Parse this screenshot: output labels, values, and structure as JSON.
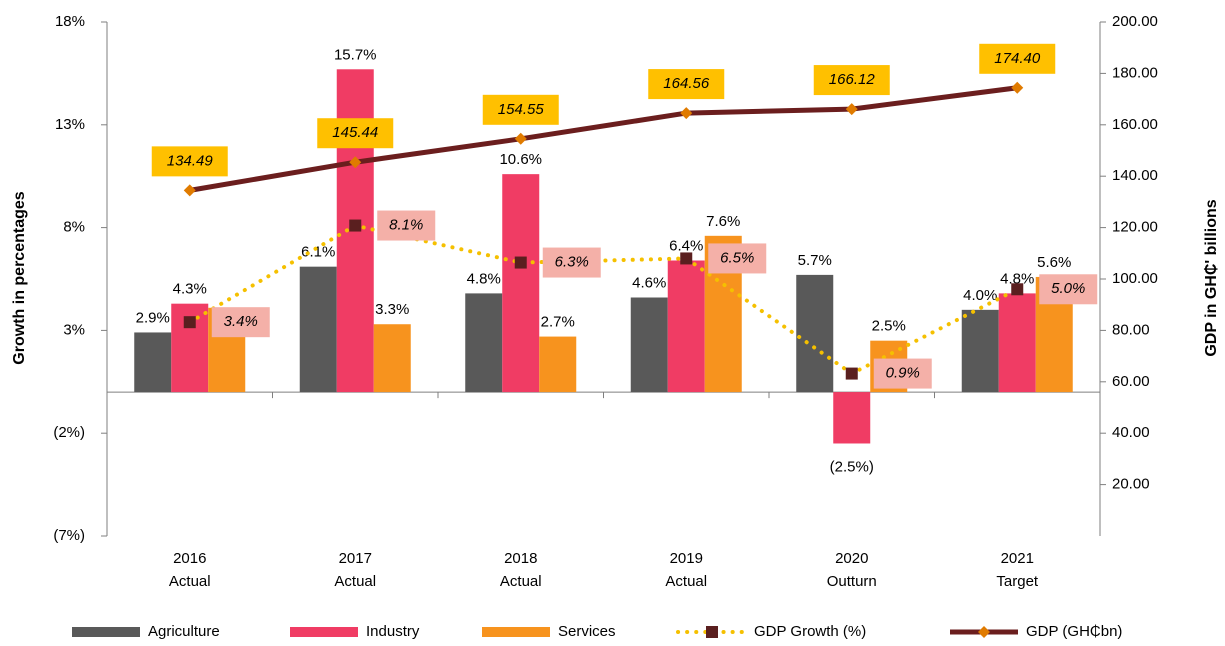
{
  "chart_data": {
    "type": "bar",
    "y_label": "Growth in percentages",
    "y2_label": "GDP in GH₵' billions",
    "categories": [
      [
        "2016",
        "Actual"
      ],
      [
        "2017",
        "Actual"
      ],
      [
        "2018",
        "Actual"
      ],
      [
        "2019",
        "Actual"
      ],
      [
        "2020",
        "Outturn"
      ],
      [
        "2021",
        "Target"
      ]
    ],
    "ylim": [
      -7,
      18
    ],
    "yticks": [
      {
        "value": -7,
        "label": "(7%)"
      },
      {
        "value": -2,
        "label": "(2%)"
      },
      {
        "value": 3,
        "label": "3%"
      },
      {
        "value": 8,
        "label": "8%"
      },
      {
        "value": 13,
        "label": "13%"
      },
      {
        "value": 18,
        "label": "18%"
      }
    ],
    "y2lim": [
      0,
      200
    ],
    "y2ticks": [
      {
        "value": 20,
        "label": "20.00"
      },
      {
        "value": 40,
        "label": "40.00"
      },
      {
        "value": 60,
        "label": "60.00"
      },
      {
        "value": 80,
        "label": "80.00"
      },
      {
        "value": 100,
        "label": "100.00"
      },
      {
        "value": 120,
        "label": "120.00"
      },
      {
        "value": 140,
        "label": "140.00"
      },
      {
        "value": 160,
        "label": "160.00"
      },
      {
        "value": 180,
        "label": "180.00"
      },
      {
        "value": 200,
        "label": "200.00"
      }
    ],
    "legend": "bottom",
    "series": [
      {
        "name": "Agriculture",
        "type": "bar",
        "color": "#595959",
        "values": [
          2.9,
          6.1,
          4.8,
          4.6,
          5.7,
          4.0
        ],
        "value_labels": [
          "2.9%",
          "6.1%",
          "4.8%",
          "4.6%",
          "5.7%",
          "4.0%"
        ]
      },
      {
        "name": "Industry",
        "type": "bar",
        "color": "#f03c64",
        "values": [
          4.3,
          15.7,
          10.6,
          6.4,
          -2.5,
          4.8
        ],
        "value_labels": [
          "4.3%",
          "15.7%",
          "10.6%",
          "6.4%",
          "(2.5%)",
          "4.8%"
        ]
      },
      {
        "name": "Services",
        "type": "bar",
        "color": "#f7931e",
        "values": [
          4.1,
          3.3,
          2.7,
          7.6,
          2.5,
          5.6
        ],
        "value_labels": [
          null,
          "3.3%",
          "2.7%",
          "7.6%",
          "2.5%",
          "5.6%"
        ]
      },
      {
        "name": "GDP Growth (%)",
        "type": "line",
        "style": "dotted",
        "color": "#f5c000",
        "marker_color": "#5a1f1f",
        "values": [
          3.4,
          8.1,
          6.3,
          6.5,
          0.9,
          5.0
        ],
        "value_labels": [
          "3.4%",
          "8.1%",
          "6.3%",
          "6.5%",
          "0.9%",
          "5.0%"
        ]
      },
      {
        "name": "GDP (GH₵bn)",
        "type": "line",
        "style": "solid",
        "axis": "y2",
        "color": "#6b1e1e",
        "marker_color": "#e07b00",
        "values": [
          134.49,
          145.44,
          154.55,
          164.56,
          166.12,
          174.4
        ],
        "value_labels": [
          "134.49",
          "145.44",
          "154.55",
          "164.56",
          "166.12",
          "174.40"
        ]
      }
    ]
  }
}
